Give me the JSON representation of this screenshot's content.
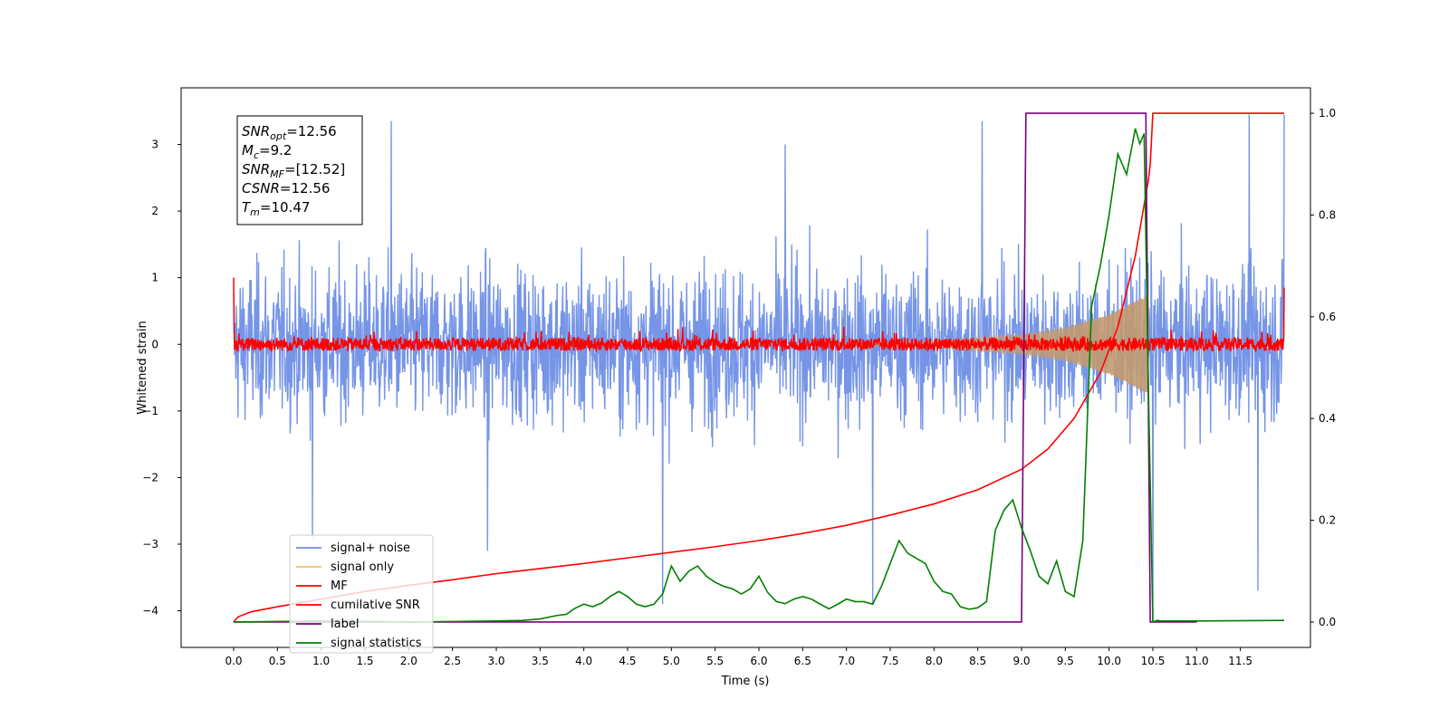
{
  "chart_data": {
    "type": "line",
    "xlabel": "Time (s)",
    "ylabel": "Whitened strain",
    "xlim": [
      -0.6,
      12.3
    ],
    "ylim": [
      -4.55,
      3.85
    ],
    "y2lim": [
      -0.05,
      1.05
    ],
    "x_ticks": [
      0.0,
      0.5,
      1.0,
      1.5,
      2.0,
      2.5,
      3.0,
      3.5,
      4.0,
      4.5,
      5.0,
      5.5,
      6.0,
      6.5,
      7.0,
      7.5,
      8.0,
      8.5,
      9.0,
      9.5,
      10.0,
      10.5,
      11.0,
      11.5
    ],
    "x_tick_labels": [
      "0.0",
      "0.5",
      "1.0",
      "1.5",
      "2.0",
      "2.5",
      "3.0",
      "3.5",
      "4.0",
      "4.5",
      "5.0",
      "5.5",
      "6.0",
      "6.5",
      "7.0",
      "7.5",
      "8.0",
      "8.5",
      "9.0",
      "9.5",
      "10.0",
      "10.5",
      "11.0",
      "11.5"
    ],
    "y_ticks": [
      3,
      2,
      1,
      0,
      -1,
      -2,
      -3,
      -4
    ],
    "y_tick_labels": [
      "3",
      "2",
      "1",
      "0",
      "−1",
      "−2",
      "−3",
      "−4"
    ],
    "y2_ticks": [
      1.0,
      0.8,
      0.6,
      0.4,
      0.2,
      0.0
    ],
    "y2_tick_labels": [
      "1.0",
      "0.8",
      "0.6",
      "0.4",
      "0.2",
      "0.0"
    ],
    "legend_position": "lower-left",
    "legend": [
      {
        "label": "signal+ noise",
        "color": "#6f8fe6"
      },
      {
        "label": "signal only",
        "color": "#f5c16c"
      },
      {
        "label": "MF",
        "color": "#ff0000"
      },
      {
        "label": "cumilative SNR",
        "color": "#ff0000"
      },
      {
        "label": "label",
        "color": "#7b007b"
      },
      {
        "label": "signal statistics",
        "color": "#008000"
      }
    ],
    "annotation": [
      {
        "name": "SNR",
        "sub": "opt",
        "value": "=12.56"
      },
      {
        "name": "M",
        "sub": "c",
        "value": "=9.2"
      },
      {
        "name": "SNR",
        "sub": "MF",
        "value": "=[12.52]"
      },
      {
        "name": "CSNR",
        "sub": "",
        "value": "=12.56"
      },
      {
        "name": "T",
        "sub": "m",
        "value": "=10.47"
      }
    ],
    "series": [
      {
        "name": "signal+ noise",
        "axis": "left",
        "color": "#6f8fe6",
        "x_range": [
          0.0,
          12.0
        ],
        "envelope_typical": [
          -1.7,
          1.8
        ],
        "notable_peaks": [
          [
            0.9,
            -2.9
          ],
          [
            1.8,
            3.35
          ],
          [
            2.9,
            -3.1
          ],
          [
            4.9,
            -3.9
          ],
          [
            6.3,
            3.0
          ],
          [
            7.3,
            -3.9
          ],
          [
            8.55,
            3.35
          ],
          [
            10.5,
            -4.15
          ],
          [
            11.6,
            3.45
          ],
          [
            11.7,
            -3.7
          ],
          [
            12.0,
            3.45
          ]
        ]
      },
      {
        "name": "signal only",
        "axis": "left",
        "color": "#f5c16c",
        "description_points": [
          [
            8.0,
            0.05
          ],
          [
            9.0,
            0.15
          ],
          [
            9.5,
            0.25
          ],
          [
            10.0,
            0.45
          ],
          [
            10.3,
            0.65
          ],
          [
            10.45,
            0.75
          ]
        ]
      },
      {
        "name": "MF",
        "axis": "left",
        "color": "#ff0000",
        "x_range": [
          0.0,
          12.0
        ],
        "envelope_typical": [
          -0.1,
          0.15
        ],
        "endpoints": [
          [
            0.0,
            1.0
          ],
          [
            12.0,
            0.85
          ]
        ]
      },
      {
        "name": "cumilative SNR",
        "axis": "right",
        "color": "#ff0000",
        "x": [
          0.0,
          0.05,
          0.2,
          0.5,
          1.0,
          1.5,
          2.0,
          2.5,
          3.0,
          3.5,
          4.0,
          4.5,
          5.0,
          5.5,
          6.0,
          6.5,
          7.0,
          7.5,
          8.0,
          8.5,
          9.0,
          9.3,
          9.6,
          9.9,
          10.1,
          10.3,
          10.45,
          10.47,
          10.5,
          12.0
        ],
        "values": [
          0.0,
          0.01,
          0.02,
          0.03,
          0.045,
          0.06,
          0.072,
          0.083,
          0.095,
          0.105,
          0.115,
          0.126,
          0.137,
          0.148,
          0.16,
          0.174,
          0.19,
          0.21,
          0.232,
          0.26,
          0.3,
          0.34,
          0.4,
          0.49,
          0.58,
          0.72,
          0.87,
          0.9,
          1.0,
          1.0
        ]
      },
      {
        "name": "label",
        "axis": "right",
        "color": "#7b007b",
        "x": [
          0.0,
          9.0,
          9.05,
          10.42,
          10.47,
          11.0
        ],
        "values": [
          0.0,
          0.0,
          1.0,
          1.0,
          0.0,
          0.0
        ]
      },
      {
        "name": "signal statistics",
        "axis": "right",
        "color": "#008000",
        "x": [
          0.0,
          1.0,
          2.0,
          3.0,
          3.3,
          3.5,
          3.7,
          3.8,
          3.9,
          4.0,
          4.1,
          4.2,
          4.3,
          4.4,
          4.5,
          4.6,
          4.7,
          4.8,
          4.9,
          5.0,
          5.1,
          5.2,
          5.3,
          5.4,
          5.5,
          5.6,
          5.7,
          5.8,
          5.9,
          6.0,
          6.1,
          6.2,
          6.3,
          6.4,
          6.5,
          6.6,
          6.7,
          6.8,
          6.9,
          7.0,
          7.1,
          7.2,
          7.3,
          7.4,
          7.5,
          7.6,
          7.7,
          7.8,
          7.9,
          8.0,
          8.1,
          8.2,
          8.3,
          8.4,
          8.5,
          8.6,
          8.7,
          8.8,
          8.9,
          9.0,
          9.1,
          9.2,
          9.3,
          9.4,
          9.5,
          9.6,
          9.7,
          9.8,
          9.9,
          10.0,
          10.1,
          10.2,
          10.3,
          10.35,
          10.4,
          10.45,
          10.5,
          10.55,
          10.6,
          11.0,
          12.0
        ],
        "values": [
          0.0,
          0.002,
          0.0,
          0.002,
          0.003,
          0.006,
          0.013,
          0.015,
          0.027,
          0.035,
          0.03,
          0.037,
          0.05,
          0.06,
          0.05,
          0.035,
          0.03,
          0.035,
          0.055,
          0.11,
          0.08,
          0.1,
          0.11,
          0.09,
          0.078,
          0.07,
          0.065,
          0.055,
          0.065,
          0.09,
          0.058,
          0.04,
          0.036,
          0.045,
          0.05,
          0.045,
          0.035,
          0.026,
          0.035,
          0.045,
          0.04,
          0.04,
          0.035,
          0.07,
          0.115,
          0.16,
          0.135,
          0.125,
          0.115,
          0.08,
          0.06,
          0.055,
          0.03,
          0.025,
          0.028,
          0.04,
          0.18,
          0.22,
          0.24,
          0.185,
          0.14,
          0.09,
          0.075,
          0.12,
          0.06,
          0.05,
          0.16,
          0.62,
          0.7,
          0.8,
          0.92,
          0.88,
          0.97,
          0.94,
          0.96,
          0.45,
          0.0,
          0.003,
          0.002,
          0.002,
          0.003
        ]
      }
    ]
  }
}
